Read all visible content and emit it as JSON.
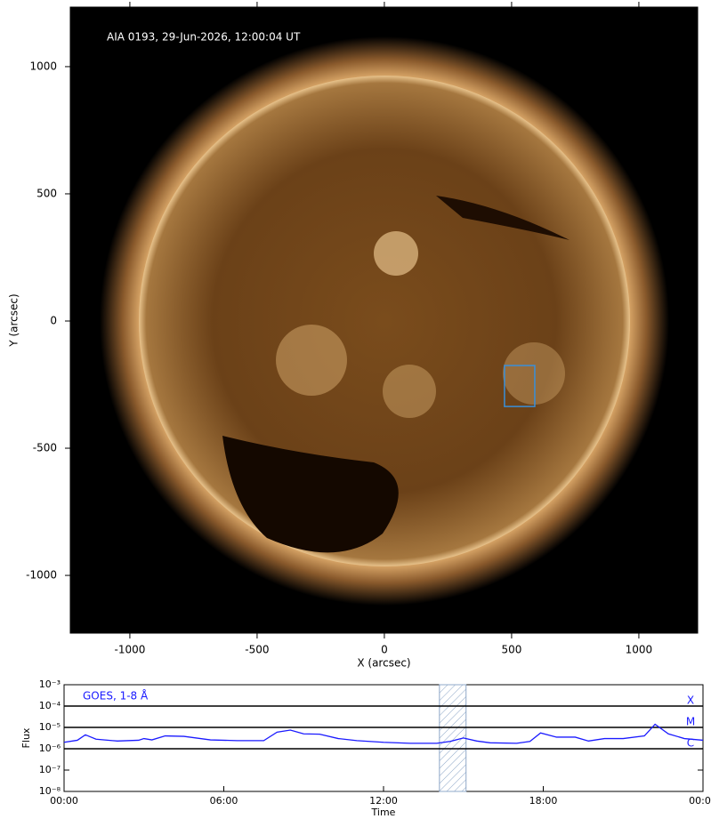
{
  "chart_data": [
    {
      "type": "image",
      "annotation": "AIA 0193, 29-Jun-2026, 12:00:04 UT",
      "xlabel": "X (arcsec)",
      "ylabel": "Y (arcsec)",
      "xlim": [
        -1234,
        1231
      ],
      "ylim": [
        -1227,
        1234
      ],
      "xticks": [
        -1000,
        -500,
        0,
        500,
        1000
      ],
      "yticks": [
        -1000,
        -500,
        0,
        500,
        1000
      ],
      "regions": [
        {
          "x": [
            472,
            591
          ],
          "y": [
            -336,
            -175
          ],
          "color": "#3a8fd8"
        }
      ]
    },
    {
      "type": "line",
      "xlabel": "Time",
      "ylabel": "Flux",
      "log": true,
      "xlim": [
        0,
        24
      ],
      "xticks": [
        {
          "value": 0,
          "label": "00:00"
        },
        {
          "value": 6,
          "label": "06:00"
        },
        {
          "value": 12,
          "label": "12:00"
        },
        {
          "value": 18,
          "label": "18:00"
        },
        {
          "value": 24,
          "label": "00:00"
        }
      ],
      "ylim": [
        1e-08,
        0.001
      ],
      "yticks": [
        {
          "value": 1e-08,
          "label": "10⁻⁸"
        },
        {
          "value": 1e-07,
          "label": "10⁻⁷"
        },
        {
          "value": 1e-06,
          "label": "10⁻⁶"
        },
        {
          "value": 1e-05,
          "label": "10⁻⁵"
        },
        {
          "value": 0.0001,
          "label": "10⁻⁴"
        },
        {
          "value": 0.001,
          "label": "10⁻³"
        }
      ],
      "levels": [
        {
          "value": 0.0001,
          "label": "X"
        },
        {
          "value": 1e-05,
          "label": "M"
        },
        {
          "value": 1e-06,
          "label": "C"
        }
      ],
      "highlight": [
        14.1,
        15.1
      ],
      "x": [
        0,
        0.5,
        0.8,
        1.2,
        2,
        2.8,
        3,
        3.3,
        3.8,
        4.5,
        5.5,
        6.5,
        7.5,
        8,
        8.5,
        9,
        9.6,
        10.3,
        11,
        12,
        13,
        14,
        14.5,
        15,
        15.5,
        16,
        17,
        17.5,
        17.9,
        18.5,
        19.2,
        19.7,
        20.3,
        21,
        21.8,
        22.2,
        22.7,
        23.3,
        24
      ],
      "series": [
        {
          "name": "GOES, 1-8 Å",
          "color": "#1a1aff",
          "values": [
            2e-06,
            2.5e-06,
            4.5e-06,
            2.8e-06,
            2.3e-06,
            2.5e-06,
            3e-06,
            2.6e-06,
            4e-06,
            3.8e-06,
            2.6e-06,
            2.4e-06,
            2.4e-06,
            6e-06,
            7.5e-06,
            5e-06,
            4.8e-06,
            3e-06,
            2.4e-06,
            2e-06,
            1.8e-06,
            1.8e-06,
            2.2e-06,
            3.2e-06,
            2.3e-06,
            1.9e-06,
            1.8e-06,
            2.2e-06,
            5.5e-06,
            3.5e-06,
            3.5e-06,
            2.3e-06,
            3e-06,
            3e-06,
            4e-06,
            1.4e-05,
            5e-06,
            3e-06,
            2.5e-06
          ]
        }
      ]
    }
  ]
}
